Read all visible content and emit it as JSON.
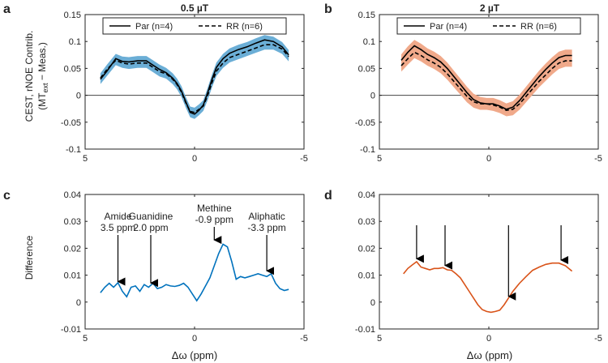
{
  "colors": {
    "blue": "#0072BD",
    "blue_band": "#6BAED6",
    "orange": "#D95319",
    "orange_band": "#F0A98A"
  },
  "chart_data": [
    {
      "id": "a",
      "type": "line",
      "panel_label": "a",
      "title": "0.5 µT",
      "ylabel_line1": "CEST, rNOE Contrib.",
      "ylabel_line2_prefix": "(MT",
      "ylabel_line2_sub": "ext",
      "ylabel_line2_suffix": " − Meas.)",
      "xlabel": "",
      "xlim": [
        5,
        -5
      ],
      "ylim": [
        -0.1,
        0.15
      ],
      "xticks": [
        5,
        0,
        -5
      ],
      "yticks": [
        -0.1,
        -0.05,
        0,
        0.05,
        0.1,
        0.15
      ],
      "ytick_labels": [
        "-0.1",
        "-0.05",
        "0",
        "0.05",
        "0.1",
        "0.15"
      ],
      "xtick_labels": [
        "5",
        "0",
        "-5"
      ],
      "zero_line": true,
      "legend": [
        "Par (n=4)",
        "RR (n=6)"
      ],
      "band_color": "#6BAED6",
      "x": [
        4.3,
        4.0,
        3.6,
        3.3,
        3.0,
        2.6,
        2.2,
        1.9,
        1.6,
        1.3,
        1.0,
        0.8,
        0.6,
        0.4,
        0.2,
        0.0,
        -0.2,
        -0.4,
        -0.6,
        -0.8,
        -1.0,
        -1.3,
        -1.6,
        -2.0,
        -2.4,
        -2.8,
        -3.2,
        -3.6,
        -4.0,
        -4.3
      ],
      "series": [
        {
          "name": "Par (n=4)",
          "style": "solid",
          "values": [
            0.03,
            0.045,
            0.068,
            0.063,
            0.062,
            0.064,
            0.064,
            0.056,
            0.048,
            0.042,
            0.032,
            0.022,
            0.008,
            -0.012,
            -0.032,
            -0.035,
            -0.028,
            -0.018,
            0.005,
            0.03,
            0.052,
            0.068,
            0.078,
            0.085,
            0.09,
            0.097,
            0.103,
            0.1,
            0.09,
            0.075
          ]
        },
        {
          "name": "RR (n=6)",
          "style": "dashed",
          "values": [
            0.032,
            0.048,
            0.065,
            0.06,
            0.058,
            0.06,
            0.06,
            0.052,
            0.044,
            0.04,
            0.03,
            0.02,
            0.006,
            -0.014,
            -0.03,
            -0.032,
            -0.026,
            -0.02,
            0.0,
            0.024,
            0.045,
            0.06,
            0.07,
            0.076,
            0.082,
            0.088,
            0.094,
            0.094,
            0.086,
            0.072
          ]
        }
      ],
      "band_halfwidth": 0.009
    },
    {
      "id": "b",
      "type": "line",
      "panel_label": "b",
      "title": "2 µT",
      "xlim": [
        5,
        -5
      ],
      "ylim": [
        -0.1,
        0.15
      ],
      "xticks": [
        5,
        0,
        -5
      ],
      "yticks": [
        -0.1,
        -0.05,
        0,
        0.05,
        0.1,
        0.15
      ],
      "ytick_labels": [
        "-0.1",
        "-0.05",
        "0",
        "0.05",
        "0.1",
        "0.15"
      ],
      "xtick_labels": [
        "5",
        "0",
        "-5"
      ],
      "zero_line": true,
      "legend": [
        "Par (n=4)",
        "RR (n=6)"
      ],
      "band_color": "#F0A98A",
      "x": [
        4.0,
        3.7,
        3.4,
        3.1,
        2.8,
        2.5,
        2.2,
        1.9,
        1.6,
        1.3,
        1.0,
        0.7,
        0.4,
        0.1,
        -0.2,
        -0.5,
        -0.8,
        -1.1,
        -1.4,
        -1.7,
        -2.0,
        -2.3,
        -2.6,
        -2.9,
        -3.2,
        -3.5,
        -3.8
      ],
      "series": [
        {
          "name": "Par (n=4)",
          "style": "solid",
          "values": [
            0.065,
            0.08,
            0.092,
            0.085,
            0.076,
            0.07,
            0.062,
            0.05,
            0.035,
            0.02,
            0.005,
            -0.008,
            -0.014,
            -0.016,
            -0.016,
            -0.02,
            -0.026,
            -0.022,
            -0.01,
            0.005,
            0.02,
            0.035,
            0.048,
            0.06,
            0.07,
            0.074,
            0.074
          ]
        },
        {
          "name": "RR (n=6)",
          "style": "dashed",
          "values": [
            0.055,
            0.068,
            0.08,
            0.074,
            0.066,
            0.06,
            0.052,
            0.04,
            0.026,
            0.012,
            -0.002,
            -0.012,
            -0.016,
            -0.016,
            -0.018,
            -0.022,
            -0.028,
            -0.026,
            -0.016,
            -0.002,
            0.012,
            0.026,
            0.038,
            0.05,
            0.06,
            0.064,
            0.064
          ]
        }
      ],
      "band_halfwidth": 0.011
    },
    {
      "id": "c",
      "type": "line",
      "panel_label": "c",
      "title": "",
      "ylabel": "Difference",
      "xlabel": "Δω (ppm)",
      "xlim": [
        5,
        -5
      ],
      "ylim": [
        -0.01,
        0.04
      ],
      "xticks": [
        5,
        0,
        -5
      ],
      "yticks": [
        -0.01,
        0,
        0.01,
        0.02,
        0.03,
        0.04
      ],
      "ytick_labels": [
        "-0.01",
        "0",
        "0.01",
        "0.02",
        "0.03",
        "0.04"
      ],
      "xtick_labels": [
        "5",
        "0",
        "-5"
      ],
      "color": "#0072BD",
      "x": [
        4.3,
        4.1,
        3.9,
        3.7,
        3.5,
        3.3,
        3.1,
        2.9,
        2.7,
        2.5,
        2.3,
        2.1,
        1.9,
        1.7,
        1.5,
        1.3,
        1.1,
        0.9,
        0.7,
        0.5,
        0.3,
        0.1,
        -0.1,
        -0.3,
        -0.5,
        -0.7,
        -0.9,
        -1.1,
        -1.3,
        -1.5,
        -1.7,
        -1.9,
        -2.1,
        -2.3,
        -2.5,
        -2.7,
        -2.9,
        -3.1,
        -3.3,
        -3.5,
        -3.7,
        -3.9,
        -4.1,
        -4.3
      ],
      "values": [
        0.0035,
        0.0055,
        0.007,
        0.0055,
        0.0072,
        0.004,
        0.002,
        0.0055,
        0.006,
        0.004,
        0.0065,
        0.0055,
        0.007,
        0.005,
        0.0055,
        0.0065,
        0.006,
        0.0058,
        0.0062,
        0.007,
        0.0055,
        0.003,
        0.0005,
        0.003,
        0.006,
        0.009,
        0.0135,
        0.018,
        0.0215,
        0.0205,
        0.015,
        0.0085,
        0.0095,
        0.009,
        0.0095,
        0.01,
        0.0105,
        0.01,
        0.0095,
        0.0105,
        0.007,
        0.005,
        0.0043,
        0.0047
      ],
      "annotations": [
        {
          "label1": "Amide",
          "label2": "3.5 ppm",
          "x": 3.5,
          "y": 0.007
        },
        {
          "label1": "Guanidine",
          "label2": "2.0 ppm",
          "x": 2.0,
          "y": 0.0065
        },
        {
          "label1": "Methine",
          "label2": "-0.9 ppm",
          "x": -0.9,
          "y": 0.0225
        },
        {
          "label1": "Aliphatic",
          "label2": "-3.3 ppm",
          "x": -3.3,
          "y": 0.011
        }
      ]
    },
    {
      "id": "d",
      "type": "line",
      "panel_label": "d",
      "title": "",
      "xlabel": "Δω (ppm)",
      "xlim": [
        5,
        -5
      ],
      "ylim": [
        -0.01,
        0.04
      ],
      "xticks": [
        5,
        0,
        -5
      ],
      "yticks": [
        -0.01,
        0,
        0.01,
        0.02,
        0.03,
        0.04
      ],
      "ytick_labels": [
        "-0.01",
        "0",
        "0.01",
        "0.02",
        "0.03",
        "0.04"
      ],
      "xtick_labels": [
        "5",
        "0",
        "-5"
      ],
      "color": "#D95319",
      "x": [
        3.9,
        3.7,
        3.5,
        3.3,
        3.1,
        2.9,
        2.7,
        2.5,
        2.3,
        2.1,
        1.9,
        1.7,
        1.5,
        1.3,
        1.1,
        0.9,
        0.7,
        0.5,
        0.3,
        0.1,
        -0.1,
        -0.3,
        -0.5,
        -0.7,
        -0.9,
        -1.1,
        -1.4,
        -1.7,
        -2.0,
        -2.3,
        -2.6,
        -2.9,
        -3.2,
        -3.5,
        -3.8
      ],
      "values": [
        0.0105,
        0.0125,
        0.0138,
        0.015,
        0.013,
        0.0125,
        0.012,
        0.0125,
        0.0125,
        0.0128,
        0.012,
        0.0118,
        0.0105,
        0.009,
        0.0065,
        0.004,
        0.0015,
        -0.001,
        -0.0028,
        -0.0035,
        -0.0038,
        -0.0035,
        -0.003,
        -0.001,
        0.0015,
        0.004,
        0.007,
        0.0095,
        0.0118,
        0.013,
        0.014,
        0.0145,
        0.0145,
        0.0135,
        0.0115
      ],
      "annotations": [
        {
          "x": 3.3,
          "y": 0.0155
        },
        {
          "x": 2.0,
          "y": 0.013
        },
        {
          "x": -0.9,
          "y": 0.0015
        },
        {
          "x": -3.3,
          "y": 0.015
        }
      ]
    }
  ]
}
